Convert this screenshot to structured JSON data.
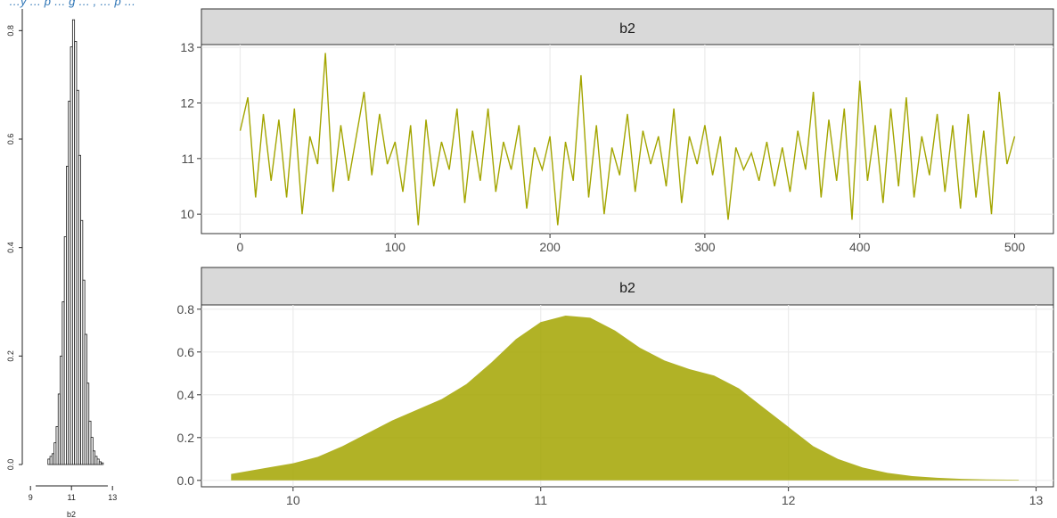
{
  "caption": "…y … p … g … , … p …",
  "chart_data": [
    {
      "type": "bar",
      "panel": "histogram",
      "xlabel": "b2",
      "x_ticks": [
        "9",
        "11",
        "13"
      ],
      "y_ticks": [
        "0.0",
        "0.2",
        "0.4",
        "0.6",
        "0.8"
      ],
      "xlim": [
        8.6,
        13.6
      ],
      "ylim": [
        0,
        0.84
      ],
      "grid": false,
      "bin_centers": [
        9.9,
        10.0,
        10.1,
        10.2,
        10.3,
        10.4,
        10.5,
        10.6,
        10.7,
        10.8,
        10.9,
        11.0,
        11.1,
        11.2,
        11.3,
        11.4,
        11.5,
        11.6,
        11.7,
        11.8,
        11.9,
        12.0,
        12.1,
        12.2,
        12.3,
        12.4,
        12.5
      ],
      "values": [
        0.01,
        0.015,
        0.02,
        0.04,
        0.07,
        0.13,
        0.2,
        0.3,
        0.42,
        0.55,
        0.67,
        0.77,
        0.82,
        0.78,
        0.69,
        0.57,
        0.45,
        0.34,
        0.24,
        0.15,
        0.08,
        0.05,
        0.025,
        0.015,
        0.01,
        0.005,
        0.003
      ]
    },
    {
      "type": "line",
      "panel": "trace",
      "strip_label": "b2",
      "color": "#a3a500",
      "x_ticks": [
        "0",
        "100",
        "200",
        "300",
        "400",
        "500"
      ],
      "y_ticks": [
        "10",
        "11",
        "12",
        "13"
      ],
      "xlim": [
        -25,
        525
      ],
      "ylim": [
        9.65,
        13.05
      ],
      "grid": true,
      "x": [
        0,
        5,
        10,
        15,
        20,
        25,
        30,
        35,
        40,
        45,
        50,
        55,
        60,
        65,
        70,
        75,
        80,
        85,
        90,
        95,
        100,
        105,
        110,
        115,
        120,
        125,
        130,
        135,
        140,
        145,
        150,
        155,
        160,
        165,
        170,
        175,
        180,
        185,
        190,
        195,
        200,
        205,
        210,
        215,
        220,
        225,
        230,
        235,
        240,
        245,
        250,
        255,
        260,
        265,
        270,
        275,
        280,
        285,
        290,
        295,
        300,
        305,
        310,
        315,
        320,
        325,
        330,
        335,
        340,
        345,
        350,
        355,
        360,
        365,
        370,
        375,
        380,
        385,
        390,
        395,
        400,
        405,
        410,
        415,
        420,
        425,
        430,
        435,
        440,
        445,
        450,
        455,
        460,
        465,
        470,
        475,
        480,
        485,
        490,
        495,
        500
      ],
      "values": [
        11.5,
        12.1,
        10.3,
        11.8,
        10.6,
        11.7,
        10.3,
        11.9,
        10.0,
        11.4,
        10.9,
        12.9,
        10.4,
        11.6,
        10.6,
        11.4,
        12.2,
        10.7,
        11.8,
        10.9,
        11.3,
        10.4,
        11.6,
        9.8,
        11.7,
        10.5,
        11.3,
        10.8,
        11.9,
        10.2,
        11.5,
        10.6,
        11.9,
        10.4,
        11.3,
        10.8,
        11.6,
        10.1,
        11.2,
        10.8,
        11.4,
        9.8,
        11.3,
        10.6,
        12.5,
        10.3,
        11.6,
        10.0,
        11.2,
        10.7,
        11.8,
        10.4,
        11.5,
        10.9,
        11.4,
        10.5,
        11.9,
        10.2,
        11.4,
        10.9,
        11.6,
        10.7,
        11.4,
        9.9,
        11.2,
        10.8,
        11.1,
        10.6,
        11.3,
        10.5,
        11.2,
        10.4,
        11.5,
        10.8,
        12.2,
        10.3,
        11.7,
        10.6,
        11.9,
        9.9,
        12.4,
        10.6,
        11.6,
        10.2,
        11.9,
        10.5,
        12.1,
        10.3,
        11.4,
        10.7,
        11.8,
        10.4,
        11.6,
        10.1,
        11.8,
        10.3,
        11.5,
        10.0,
        12.2,
        10.9,
        11.4
      ]
    },
    {
      "type": "area",
      "panel": "density",
      "strip_label": "b2",
      "color": "#a3a500",
      "x_ticks": [
        "10",
        "11",
        "12",
        "13"
      ],
      "y_ticks": [
        "0.0",
        "0.2",
        "0.4",
        "0.6",
        "0.8"
      ],
      "xlim": [
        9.63,
        13.07
      ],
      "ylim": [
        -0.03,
        0.82
      ],
      "grid": true,
      "x": [
        9.75,
        9.9,
        10.0,
        10.1,
        10.2,
        10.3,
        10.4,
        10.5,
        10.6,
        10.7,
        10.8,
        10.9,
        11.0,
        11.1,
        11.2,
        11.3,
        11.4,
        11.5,
        11.6,
        11.7,
        11.8,
        11.9,
        12.0,
        12.1,
        12.2,
        12.3,
        12.4,
        12.5,
        12.6,
        12.7,
        12.8,
        12.93
      ],
      "values": [
        0.03,
        0.06,
        0.08,
        0.11,
        0.16,
        0.22,
        0.28,
        0.33,
        0.38,
        0.45,
        0.55,
        0.66,
        0.74,
        0.77,
        0.76,
        0.7,
        0.62,
        0.56,
        0.52,
        0.49,
        0.43,
        0.34,
        0.25,
        0.16,
        0.1,
        0.06,
        0.035,
        0.02,
        0.012,
        0.007,
        0.004,
        0.003
      ]
    }
  ]
}
